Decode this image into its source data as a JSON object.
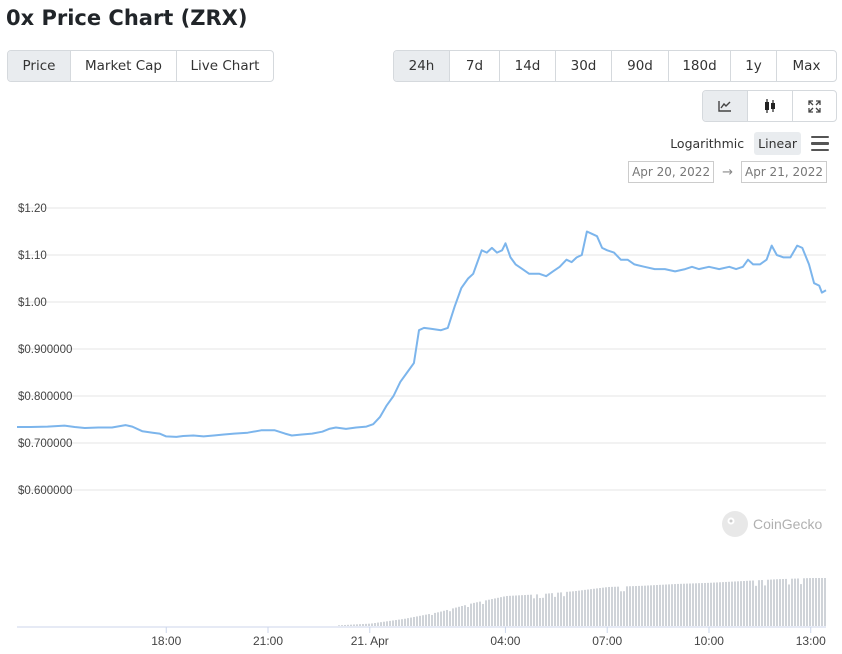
{
  "title": "0x Price Chart (ZRX)",
  "type_tabs": [
    {
      "label": "Price",
      "active": true
    },
    {
      "label": "Market Cap",
      "active": false
    },
    {
      "label": "Live Chart",
      "active": false
    }
  ],
  "range_tabs": [
    {
      "label": "24h",
      "active": true
    },
    {
      "label": "7d",
      "active": false
    },
    {
      "label": "14d",
      "active": false
    },
    {
      "label": "30d",
      "active": false
    },
    {
      "label": "90d",
      "active": false
    },
    {
      "label": "180d",
      "active": false
    },
    {
      "label": "1y",
      "active": false
    },
    {
      "label": "Max",
      "active": false
    }
  ],
  "mode_buttons": [
    "line-chart-icon",
    "candlestick-icon",
    "fullscreen-icon"
  ],
  "scale": {
    "logarithmic": "Logarithmic",
    "linear": "Linear",
    "active": "linear"
  },
  "dates": {
    "from": "Apr 20, 2022",
    "arrow": "→",
    "to": "Apr 21, 2022"
  },
  "watermark": "CoinGecko",
  "colors": {
    "line": "#7cb5ec",
    "volume": "#cfd3d8",
    "grid": "#e6e6e6",
    "active_bg": "#e9ecef"
  },
  "chart_data": {
    "type": "line",
    "ylim": [
      0.5,
      1.2
    ],
    "y_ticks": [
      {
        "value": 1.2,
        "label": "$1.20"
      },
      {
        "value": 1.1,
        "label": "$1.10"
      },
      {
        "value": 1.0,
        "label": "$1.00"
      },
      {
        "value": 0.9,
        "label": "$0.900000"
      },
      {
        "value": 0.8,
        "label": "$0.800000"
      },
      {
        "value": 0.7,
        "label": "$0.700000"
      },
      {
        "value": 0.6,
        "label": "$0.600000"
      }
    ],
    "x_ticks": [
      {
        "t": 18,
        "label": "18:00"
      },
      {
        "t": 21,
        "label": "21:00"
      },
      {
        "t": 24,
        "label": "21. Apr"
      },
      {
        "t": 28,
        "label": "04:00"
      },
      {
        "t": 31,
        "label": "07:00"
      },
      {
        "t": 34,
        "label": "10:00"
      },
      {
        "t": 37,
        "label": "13:00"
      }
    ],
    "xlim": [
      13.6,
      37.45
    ],
    "series": [
      {
        "values": [
          [
            13.6,
            0.734
          ],
          [
            14,
            0.734
          ],
          [
            14.5,
            0.735
          ],
          [
            15,
            0.737
          ],
          [
            15.3,
            0.734
          ],
          [
            15.6,
            0.732
          ],
          [
            16,
            0.733
          ],
          [
            16.4,
            0.733
          ],
          [
            16.8,
            0.738
          ],
          [
            17.0,
            0.735
          ],
          [
            17.3,
            0.725
          ],
          [
            17.6,
            0.722
          ],
          [
            17.8,
            0.72
          ],
          [
            18.0,
            0.714
          ],
          [
            18.3,
            0.713
          ],
          [
            18.5,
            0.715
          ],
          [
            18.8,
            0.716
          ],
          [
            19.1,
            0.714
          ],
          [
            19.4,
            0.716
          ],
          [
            19.7,
            0.718
          ],
          [
            20.0,
            0.72
          ],
          [
            20.4,
            0.722
          ],
          [
            20.8,
            0.727
          ],
          [
            21.2,
            0.727
          ],
          [
            21.5,
            0.72
          ],
          [
            21.7,
            0.716
          ],
          [
            22.0,
            0.718
          ],
          [
            22.3,
            0.72
          ],
          [
            22.6,
            0.724
          ],
          [
            22.8,
            0.73
          ],
          [
            23.0,
            0.733
          ],
          [
            23.3,
            0.73
          ],
          [
            23.6,
            0.733
          ],
          [
            23.9,
            0.735
          ],
          [
            24.1,
            0.74
          ],
          [
            24.3,
            0.755
          ],
          [
            24.5,
            0.78
          ],
          [
            24.7,
            0.8
          ],
          [
            24.9,
            0.83
          ],
          [
            25.1,
            0.85
          ],
          [
            25.3,
            0.87
          ],
          [
            25.45,
            0.94
          ],
          [
            25.6,
            0.945
          ],
          [
            25.8,
            0.943
          ],
          [
            26.1,
            0.94
          ],
          [
            26.3,
            0.945
          ],
          [
            26.5,
            0.99
          ],
          [
            26.7,
            1.03
          ],
          [
            26.9,
            1.05
          ],
          [
            27.05,
            1.06
          ],
          [
            27.15,
            1.08
          ],
          [
            27.3,
            1.11
          ],
          [
            27.45,
            1.105
          ],
          [
            27.6,
            1.115
          ],
          [
            27.75,
            1.105
          ],
          [
            27.9,
            1.11
          ],
          [
            28.0,
            1.125
          ],
          [
            28.15,
            1.095
          ],
          [
            28.3,
            1.08
          ],
          [
            28.5,
            1.07
          ],
          [
            28.7,
            1.06
          ],
          [
            29.0,
            1.06
          ],
          [
            29.2,
            1.055
          ],
          [
            29.4,
            1.065
          ],
          [
            29.6,
            1.075
          ],
          [
            29.8,
            1.09
          ],
          [
            29.95,
            1.085
          ],
          [
            30.1,
            1.095
          ],
          [
            30.25,
            1.1
          ],
          [
            30.4,
            1.15
          ],
          [
            30.55,
            1.145
          ],
          [
            30.7,
            1.14
          ],
          [
            30.85,
            1.115
          ],
          [
            31.0,
            1.11
          ],
          [
            31.2,
            1.105
          ],
          [
            31.4,
            1.09
          ],
          [
            31.6,
            1.09
          ],
          [
            31.8,
            1.08
          ],
          [
            32.1,
            1.075
          ],
          [
            32.4,
            1.07
          ],
          [
            32.7,
            1.07
          ],
          [
            33.0,
            1.065
          ],
          [
            33.3,
            1.07
          ],
          [
            33.5,
            1.075
          ],
          [
            33.7,
            1.07
          ],
          [
            34.0,
            1.075
          ],
          [
            34.3,
            1.07
          ],
          [
            34.6,
            1.075
          ],
          [
            34.8,
            1.07
          ],
          [
            35.0,
            1.075
          ],
          [
            35.15,
            1.09
          ],
          [
            35.3,
            1.08
          ],
          [
            35.5,
            1.08
          ],
          [
            35.7,
            1.09
          ],
          [
            35.85,
            1.12
          ],
          [
            36.0,
            1.1
          ],
          [
            36.2,
            1.095
          ],
          [
            36.4,
            1.095
          ],
          [
            36.6,
            1.12
          ],
          [
            36.75,
            1.115
          ],
          [
            36.95,
            1.08
          ],
          [
            37.1,
            1.04
          ],
          [
            37.25,
            1.035
          ],
          [
            37.33,
            1.02
          ],
          [
            37.45,
            1.025
          ]
        ]
      }
    ],
    "volume": {
      "x_start": 13.6,
      "x_end": 37.45,
      "levels": [
        [
          13.6,
          0.0
        ],
        [
          21.0,
          0.0
        ],
        [
          23.0,
          0.01
        ],
        [
          24.0,
          0.04
        ],
        [
          25.0,
          0.12
        ],
        [
          26.0,
          0.23
        ],
        [
          27.0,
          0.38
        ],
        [
          28.0,
          0.5
        ],
        [
          29.0,
          0.53
        ],
        [
          30.0,
          0.58
        ],
        [
          31.0,
          0.65
        ],
        [
          32.0,
          0.67
        ],
        [
          33.0,
          0.7
        ],
        [
          34.0,
          0.72
        ],
        [
          35.0,
          0.75
        ],
        [
          36.0,
          0.78
        ],
        [
          37.0,
          0.8
        ],
        [
          37.45,
          0.8
        ]
      ]
    }
  }
}
